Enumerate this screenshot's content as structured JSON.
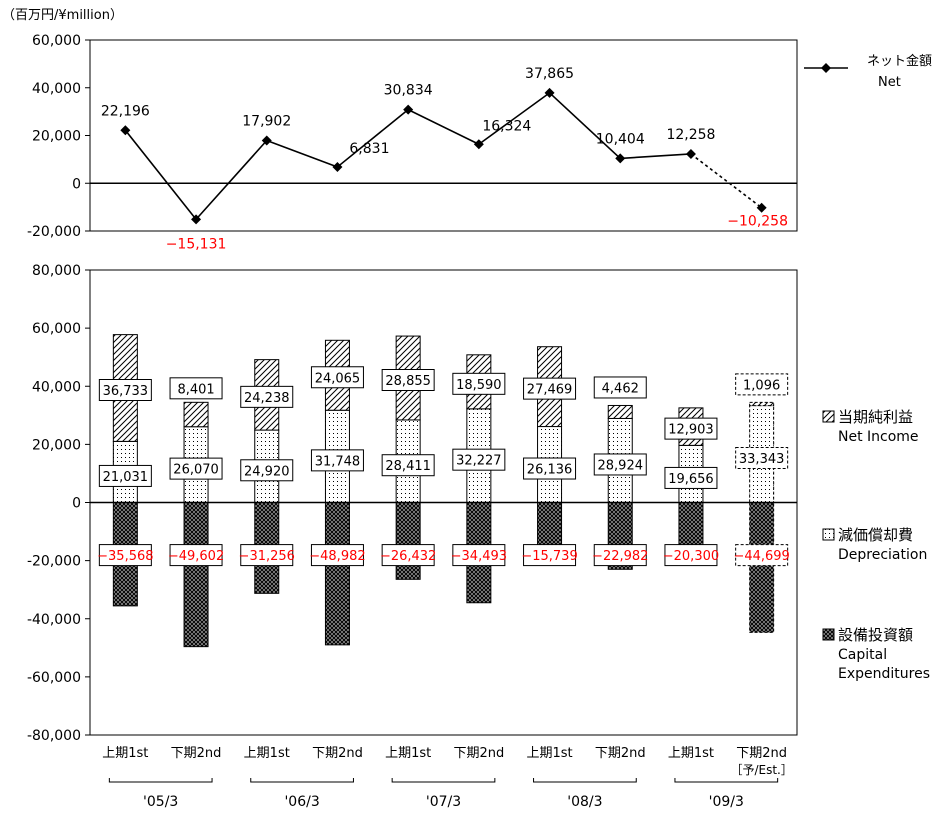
{
  "unit_label": "（百万円/¥million）",
  "colors": {
    "negative": "#ff0000",
    "text": "#000000"
  },
  "chart_data": [
    {
      "type": "line",
      "series": [
        {
          "name": "ネット金額 Net",
          "legend_jp": "ネット金額",
          "legend_en": "Net",
          "values": [
            22196,
            -15131,
            17902,
            6831,
            30834,
            16324,
            37865,
            10404,
            12258,
            -10258
          ],
          "labels": [
            "22,196",
            "−15,131",
            "17,902",
            "6,831",
            "30,834",
            "16,324",
            "37,865",
            "10,404",
            "12,258",
            "−10,258"
          ],
          "estimate_from_index": 8
        }
      ],
      "yticks": [
        "60,000",
        "40,000",
        "20,000",
        "0",
        "-20,000"
      ],
      "ylim": [
        -20000,
        60000
      ]
    },
    {
      "type": "bar",
      "stacked": true,
      "categories": [
        "上期1st",
        "下期2nd",
        "上期1st",
        "下期2nd",
        "上期1st",
        "下期2nd",
        "上期1st",
        "下期2nd",
        "上期1st",
        "下期2nd"
      ],
      "estimate_category_suffix": "［予/Est.］",
      "groups": [
        "'05/3",
        "'06/3",
        "'07/3",
        "'08/3",
        "'09/3"
      ],
      "series": [
        {
          "name": "当期純利益 Net Income",
          "legend_jp": "当期純利益",
          "legend_en": "Net Income",
          "values": [
            36733,
            8401,
            24238,
            24065,
            28855,
            18590,
            27469,
            4462,
            12903,
            1096
          ],
          "labels": [
            "36,733",
            "8,401",
            "24,238",
            "24,065",
            "28,855",
            "18,590",
            "27,469",
            "4,462",
            "12,903",
            "1,096"
          ]
        },
        {
          "name": "減価償却費 Depreciation",
          "legend_jp": "減価償却費",
          "legend_en": "Depreciation",
          "values": [
            21031,
            26070,
            24920,
            31748,
            28411,
            32227,
            26136,
            28924,
            19656,
            33343
          ],
          "labels": [
            "21,031",
            "26,070",
            "24,920",
            "31,748",
            "28,411",
            "32,227",
            "26,136",
            "28,924",
            "19,656",
            "33,343"
          ]
        },
        {
          "name": "設備投資額 Capital Expenditures",
          "legend_jp": "設備投資額",
          "legend_en1": "Capital",
          "legend_en2": "Expenditures",
          "values": [
            -35568,
            -49602,
            -31256,
            -48982,
            -26432,
            -34493,
            -15739,
            -22982,
            -20300,
            -44699
          ],
          "labels": [
            "−35,568",
            "−49,602",
            "−31,256",
            "−48,982",
            "−26,432",
            "−34,493",
            "−15,739",
            "−22,982",
            "−20,300",
            "−44,699"
          ]
        }
      ],
      "yticks": [
        "80,000",
        "60,000",
        "40,000",
        "20,000",
        "0",
        "-20,000",
        "-40,000",
        "-60,000",
        "-80,000"
      ],
      "ylim": [
        -80000,
        80000
      ]
    }
  ]
}
